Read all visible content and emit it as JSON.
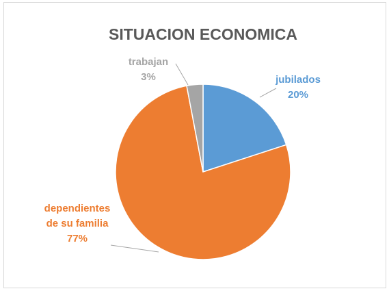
{
  "chart_data": {
    "type": "pie",
    "title": "SITUACION ECONOMICA",
    "categories": [
      "jubilados",
      "dependientes de su familia",
      "trabajan"
    ],
    "values": [
      20,
      77,
      3
    ],
    "value_labels": [
      "20%",
      "77%",
      "3%"
    ],
    "colors": [
      "#5b9bd5",
      "#ed7d31",
      "#a5a5a5"
    ]
  }
}
